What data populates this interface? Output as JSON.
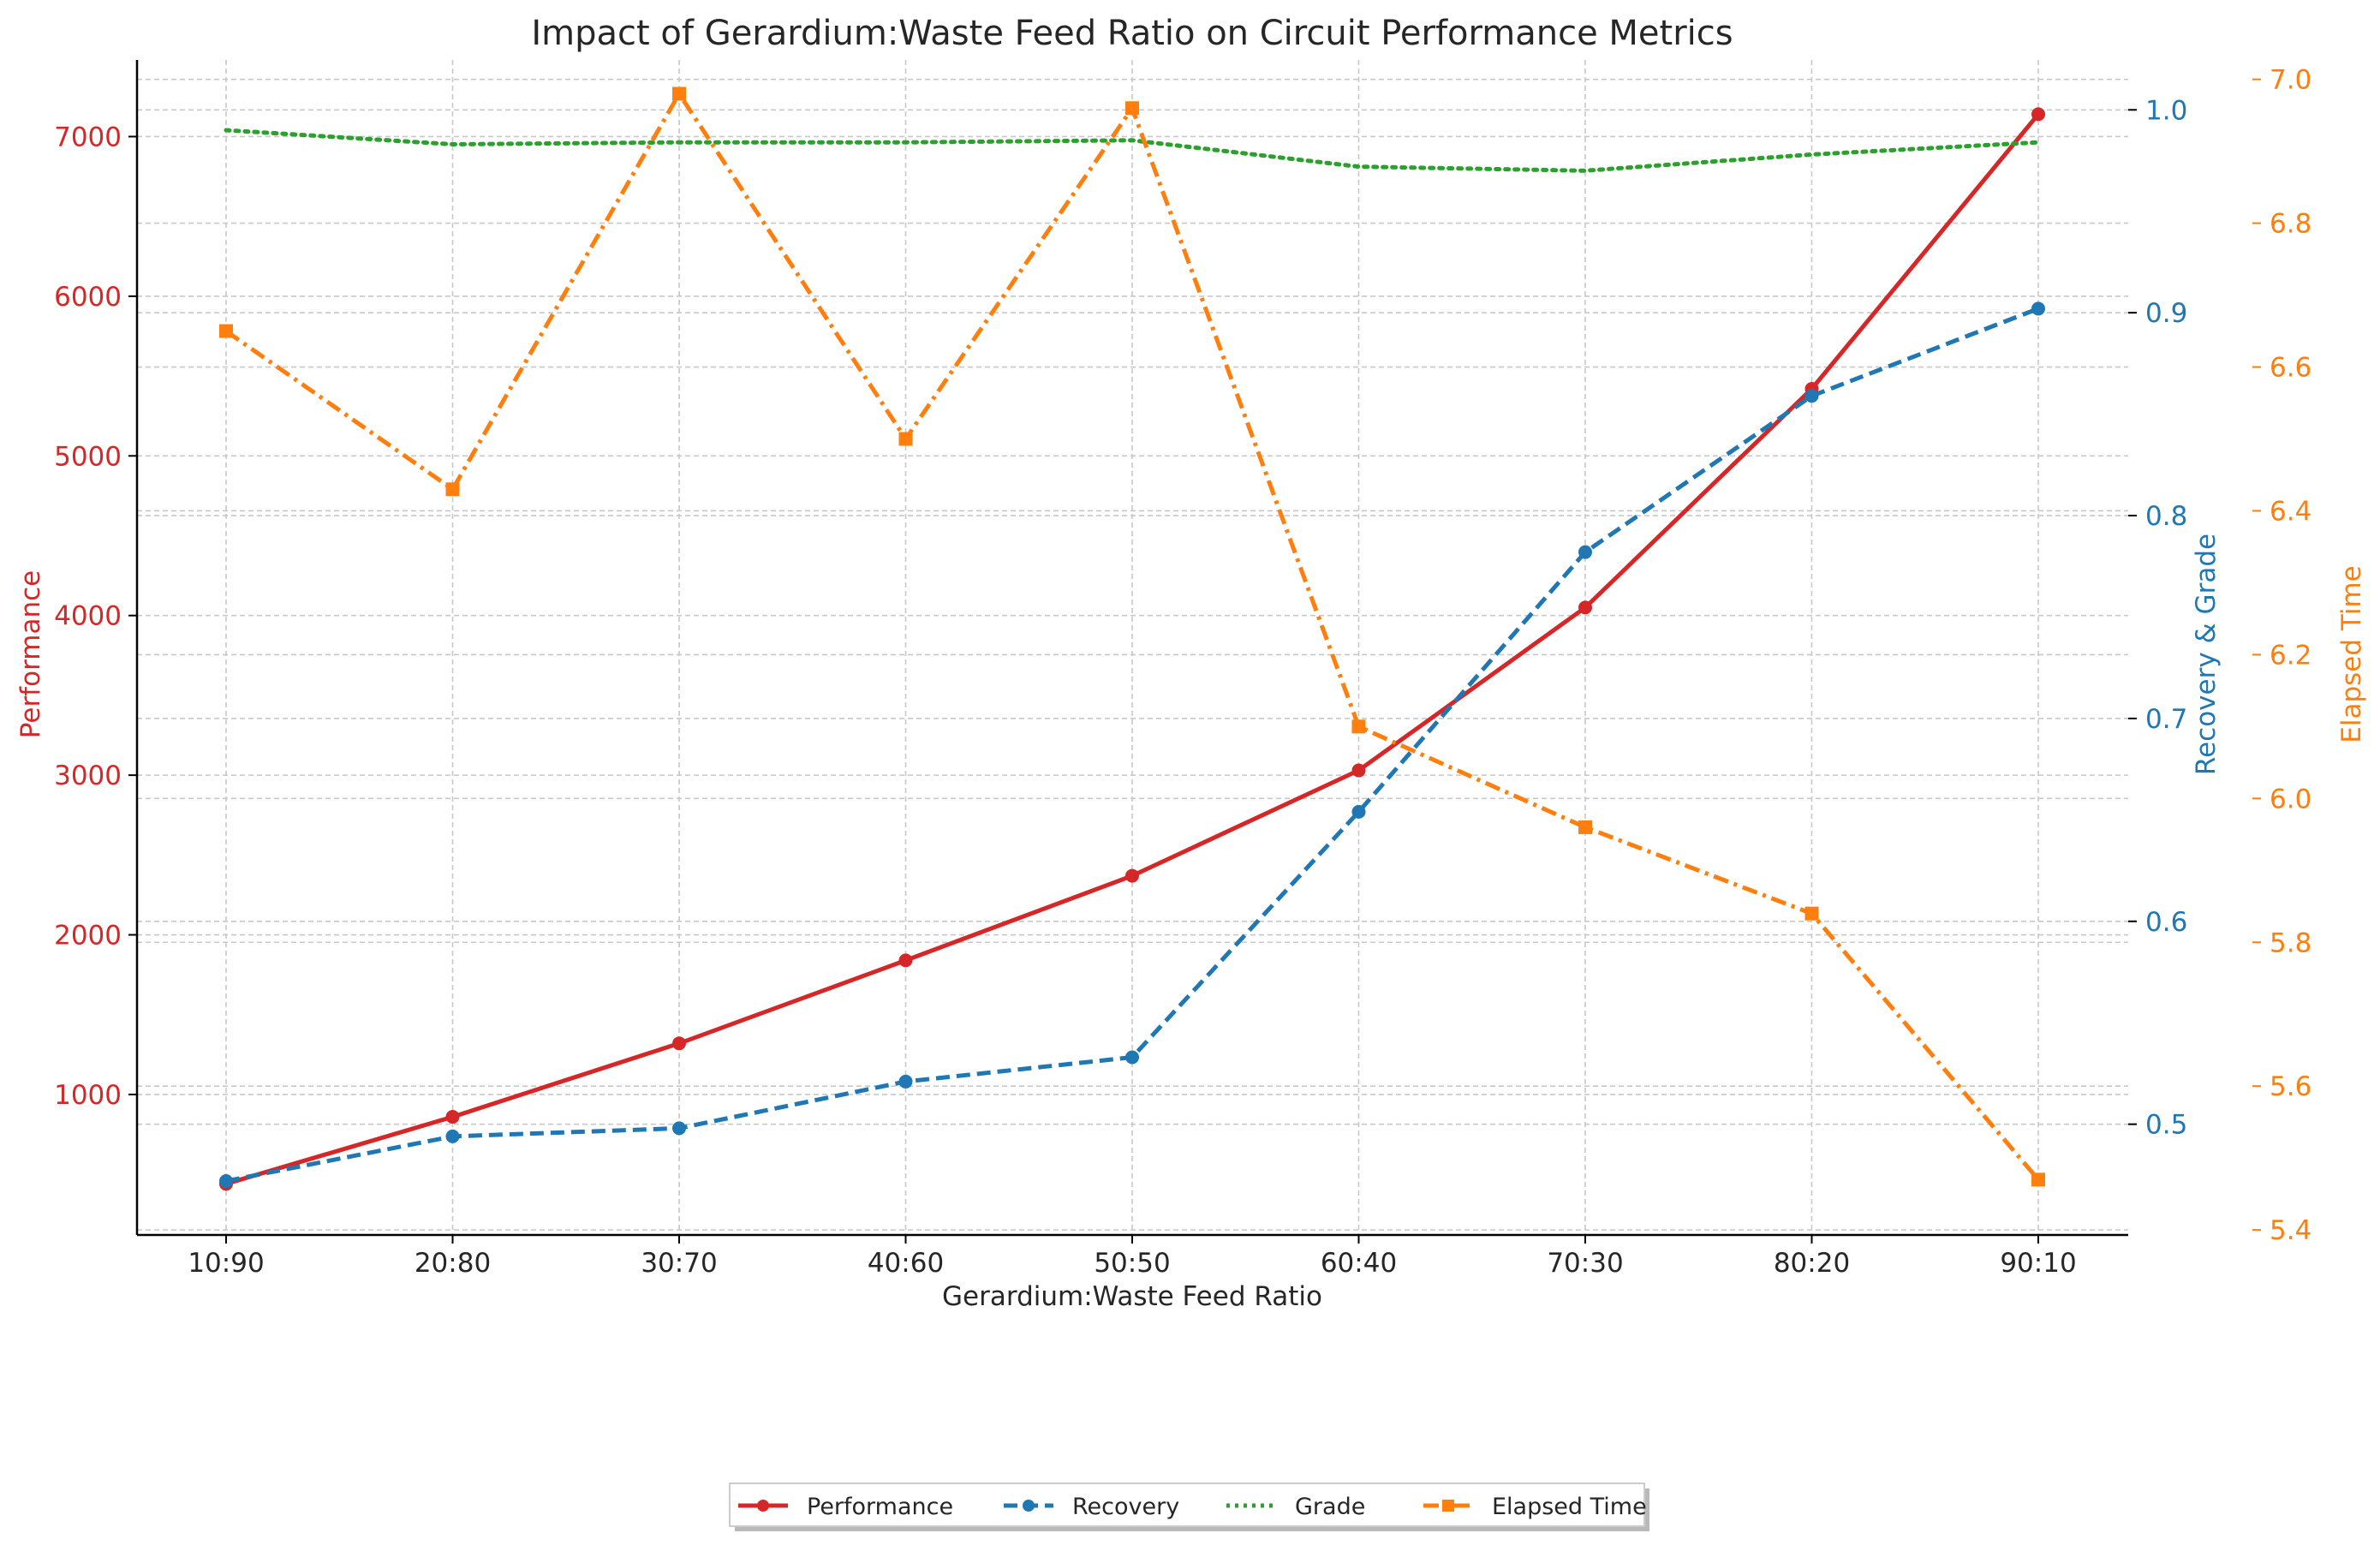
{
  "chart_data": {
    "type": "line",
    "title": "Impact of Gerardium:Waste Feed Ratio on Circuit Performance Metrics",
    "xlabel": "Gerardium:Waste Feed Ratio",
    "categories": [
      "10:90",
      "20:80",
      "30:70",
      "40:60",
      "50:50",
      "60:40",
      "70:30",
      "80:20",
      "90:10"
    ],
    "axes": {
      "left": {
        "label": "Performance",
        "ylim": [
          120,
          7480
        ],
        "ticks": [
          1000,
          2000,
          3000,
          4000,
          5000,
          6000,
          7000
        ],
        "tick_labels": [
          "1000",
          "2000",
          "3000",
          "4000",
          "5000",
          "6000",
          "7000"
        ],
        "color": "#d62728"
      },
      "right": {
        "label": "Recovery & Grade",
        "ylim": [
          0.4454,
          1.0246
        ],
        "ticks": [
          0.5,
          0.6,
          0.7,
          0.8,
          0.9,
          1.0
        ],
        "tick_labels": [
          "0.5",
          "0.6",
          "0.7",
          "0.8",
          "0.9",
          "1.0"
        ],
        "color": "#1f77b4"
      },
      "right2": {
        "label": "Elapsed Time",
        "ylim": [
          5.393,
          7.027
        ],
        "ticks": [
          5.4,
          5.6,
          5.8,
          6.0,
          6.2,
          6.4,
          6.6,
          6.8,
          7.0
        ],
        "tick_labels": [
          "5.4",
          "5.6",
          "5.8",
          "6.0",
          "6.2",
          "6.4",
          "6.6",
          "6.8",
          "7.0"
        ],
        "color": "#ff7f0e"
      }
    },
    "series": [
      {
        "name": "Performance",
        "axis": "left",
        "color": "#d62728",
        "style": "solid",
        "marker": "circle",
        "values": [
          440,
          860,
          1320,
          1840,
          2370,
          3030,
          4050,
          5420,
          7140
        ]
      },
      {
        "name": "Recovery",
        "axis": "right",
        "color": "#1f77b4",
        "style": "dashed",
        "marker": "circle",
        "values": [
          0.472,
          0.494,
          0.498,
          0.521,
          0.533,
          0.654,
          0.782,
          0.859,
          0.902
        ]
      },
      {
        "name": "Grade",
        "axis": "right",
        "color": "#2ca02c",
        "style": "dotted",
        "marker": "none",
        "values": [
          0.99,
          0.983,
          0.984,
          0.984,
          0.985,
          0.972,
          0.97,
          0.978,
          0.984
        ]
      },
      {
        "name": "Elapsed Time",
        "axis": "right2",
        "color": "#ff7f0e",
        "style": "dashdot",
        "marker": "square",
        "values": [
          6.65,
          6.43,
          6.98,
          6.5,
          6.96,
          6.1,
          5.96,
          5.84,
          5.47
        ]
      }
    ],
    "legend": {
      "position": "bottom-center",
      "labels": [
        "Performance",
        "Recovery",
        "Grade",
        "Elapsed Time"
      ]
    },
    "grid": true
  }
}
